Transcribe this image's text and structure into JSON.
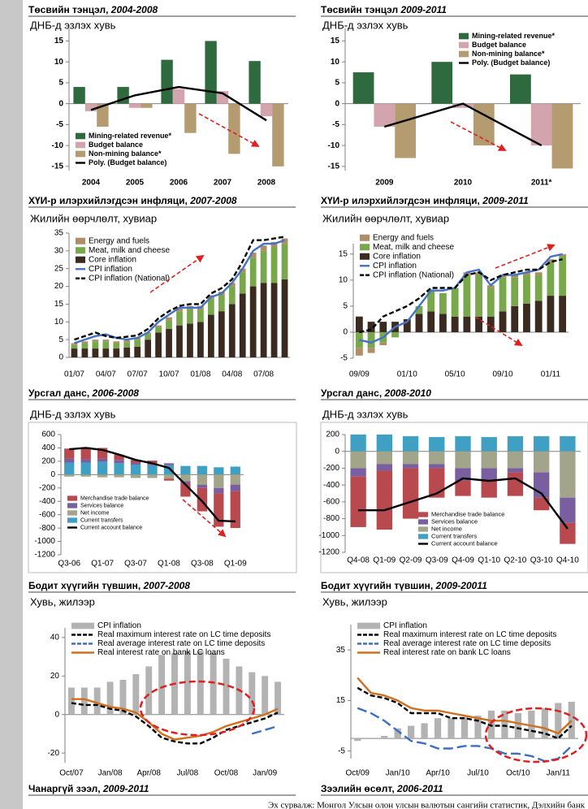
{
  "chart_data": [
    {
      "type": "bar",
      "stacked": false,
      "title": "Төсвийн тэнцэл, ",
      "title_period": "2004-2008",
      "subtitle": "ДНБ-д эзлэх хувь",
      "categories": [
        "2004",
        "2005",
        "2006",
        "2007",
        "2008"
      ],
      "series": [
        {
          "name": "Mining-related revenue*",
          "kind": "bar",
          "color": "#2f6a3f",
          "values": [
            4,
            4,
            10.5,
            15,
            10.2
          ]
        },
        {
          "name": "Budget balance",
          "kind": "bar",
          "color": "#d3a4ae",
          "values": [
            -1.8,
            -1,
            3.5,
            3,
            -3
          ]
        },
        {
          "name": "Non-mining balance*",
          "kind": "bar",
          "color": "#b59b70",
          "values": [
            -5.5,
            -1,
            -7,
            -12,
            -15
          ]
        },
        {
          "name": "Poly. (Budget balance)",
          "kind": "line",
          "color": "#000000",
          "values": [
            -1.5,
            2,
            4,
            2.5,
            -4
          ]
        }
      ],
      "ylim": [
        -16,
        18
      ],
      "yticks": [
        -15,
        -10,
        -5,
        0,
        5,
        10,
        15
      ],
      "legend": "lower left"
    },
    {
      "type": "bar",
      "stacked": false,
      "title": "Төсвийн тэнцэл ",
      "title_period": "2009-2011",
      "subtitle": "ДНБ-д эзлэх хувь",
      "categories": [
        "2009",
        "2010",
        "2011*"
      ],
      "series": [
        {
          "name": "Mining-related revenue*",
          "kind": "bar",
          "color": "#2f6a3f",
          "values": [
            7.5,
            10,
            7
          ]
        },
        {
          "name": "Budget balance",
          "kind": "bar",
          "color": "#d3a4ae",
          "values": [
            -5.5,
            -1,
            -10
          ]
        },
        {
          "name": "Non-mining balance*",
          "kind": "bar",
          "color": "#b59b70",
          "values": [
            -13,
            -10,
            -15.5
          ]
        },
        {
          "name": "Poly. (Budget balance)",
          "kind": "line",
          "color": "#000000",
          "values": [
            -5.5,
            0,
            -10
          ]
        }
      ],
      "ylim": [
        -16,
        18
      ],
      "yticks": [
        -15,
        -10,
        -5,
        0,
        5,
        10,
        15
      ],
      "legend": "upper right"
    },
    {
      "type": "bar",
      "stacked": true,
      "title": "ХҮИ-р илэрхийлэгдсэн инфляци, ",
      "title_period": "2007-2008",
      "subtitle": "Жилийн өөрчлөлт, хувиар",
      "categories": [
        "01/07",
        null,
        null,
        "04/07",
        null,
        null,
        "07/07",
        null,
        null,
        "10/07",
        null,
        null,
        "01/08",
        null,
        null,
        "04/08",
        null,
        null,
        "07/08",
        null,
        null
      ],
      "series": [
        {
          "name": "Energy and fuels",
          "kind": "bar",
          "color": "#b08d68",
          "values": [
            0.5,
            0.5,
            0.5,
            0.5,
            0.5,
            0.5,
            0.5,
            0.5,
            0.5,
            0.8,
            1,
            1,
            1,
            1,
            1,
            1,
            1,
            1.5,
            1.5,
            1.5,
            1.5
          ]
        },
        {
          "name": "Meat, milk and cheese",
          "kind": "bar",
          "color": "#78a84b",
          "values": [
            1,
            1.5,
            2,
            2,
            1.5,
            1.5,
            2,
            1.5,
            1.5,
            2.5,
            4,
            4,
            3.5,
            4.5,
            4.5,
            5,
            6,
            8,
            9,
            10,
            10
          ]
        },
        {
          "name": "Core inflation",
          "kind": "bar",
          "color": "#3a2a1f",
          "values": [
            2.5,
            2.5,
            2.5,
            2.5,
            2.5,
            2.8,
            3,
            5,
            7,
            8,
            9,
            9.5,
            10,
            12,
            13,
            15,
            18,
            20,
            21,
            21,
            22
          ]
        },
        {
          "name": "CPI inflation",
          "kind": "line",
          "color": "#4472c4",
          "values": [
            4,
            5,
            6,
            6.5,
            5.5,
            5,
            5.5,
            7,
            10,
            12,
            14,
            14,
            14,
            17,
            18,
            21,
            25,
            30,
            32,
            32,
            33
          ]
        },
        {
          "name": "CPI inflation (National)",
          "kind": "line",
          "dash": true,
          "color": "#000000",
          "values": [
            5,
            6,
            7,
            6,
            5.5,
            5.8,
            6.2,
            8,
            11,
            13,
            14.5,
            15,
            15,
            18,
            19.5,
            22,
            27,
            33,
            33,
            33.5,
            34
          ]
        }
      ],
      "ylim": [
        0,
        35
      ],
      "yticks": [
        0,
        5,
        10,
        15,
        20,
        25,
        30,
        35
      ],
      "legend": "upper left"
    },
    {
      "type": "bar",
      "stacked": true,
      "title": "ХҮИ-р илэрхийлэгдсэн инфляци, ",
      "title_period": "2009-2011",
      "subtitle": "Жилийн өөрчлөлт, хувиар",
      "categories": [
        "09/09",
        null,
        null,
        null,
        "01/10",
        null,
        null,
        null,
        "05/10",
        null,
        null,
        null,
        "09/10",
        null,
        null,
        null,
        "01/11",
        null
      ],
      "series": [
        {
          "name": "Energy and fuels",
          "kind": "bar",
          "color": "#b08d68",
          "values": [
            -1.5,
            -1,
            -0.5,
            0,
            0,
            0,
            0,
            0,
            0,
            0.5,
            0.5,
            0.5,
            0.5,
            0.5,
            0.5,
            0.5,
            0.5,
            0.5
          ]
        },
        {
          "name": "Meat, milk and cheese",
          "kind": "bar",
          "color": "#78a84b",
          "values": [
            -3,
            -3,
            -2,
            -1,
            0,
            1.5,
            4,
            4,
            5.5,
            8,
            8,
            5.5,
            6.5,
            5.5,
            5.5,
            5,
            6.5,
            7.5
          ]
        },
        {
          "name": "Core inflation",
          "kind": "bar",
          "color": "#3a2a1f",
          "values": [
            3,
            2,
            2,
            2,
            2.5,
            3.5,
            4,
            3.5,
            3,
            3,
            3,
            3,
            4,
            5,
            5.5,
            6,
            7,
            7
          ]
        },
        {
          "name": "CPI inflation",
          "kind": "line",
          "color": "#4472c4",
          "values": [
            -1.5,
            -2,
            -1,
            1,
            2,
            5,
            8,
            8,
            8.5,
            11.5,
            12,
            9,
            11,
            11,
            11.5,
            12,
            14.5,
            15
          ]
        },
        {
          "name": "CPI inflation (National)",
          "kind": "line",
          "dash": true,
          "color": "#000000",
          "values": [
            0,
            0.5,
            3,
            4,
            5,
            6.5,
            8.5,
            8.5,
            8.5,
            11,
            11.5,
            10,
            11,
            11.5,
            12,
            12,
            13.5,
            14
          ]
        }
      ],
      "ylim": [
        -5,
        17
      ],
      "yticks": [
        -5,
        0,
        5,
        10,
        15
      ],
      "legend": "upper left"
    },
    {
      "type": "bar",
      "stacked": true,
      "title": "Урсгал данс, ",
      "title_period": "2006-2008",
      "subtitle": "ДНБ-д эзлэх хувь",
      "categories": [
        "Q3-06",
        null,
        "Q1-07",
        null,
        "Q3-07",
        null,
        "Q1-08",
        null,
        "Q3-08",
        null,
        "Q1-09"
      ],
      "series": [
        {
          "name": "Merchandise trade balance",
          "kind": "bar",
          "color": "#b8494e",
          "values": [
            150,
            180,
            160,
            80,
            40,
            40,
            -30,
            -200,
            -350,
            -500,
            -550
          ]
        },
        {
          "name": "Services balance",
          "kind": "bar",
          "color": "#7a5fa0",
          "values": [
            60,
            50,
            50,
            50,
            30,
            30,
            30,
            -30,
            -50,
            -80,
            -100
          ]
        },
        {
          "name": "Net income",
          "kind": "bar",
          "color": "#a3a58b",
          "values": [
            -30,
            -30,
            -40,
            -40,
            -50,
            -50,
            -60,
            -100,
            -150,
            -200,
            -150
          ]
        },
        {
          "name": "Current transfers",
          "kind": "bar",
          "color": "#3fa0c3",
          "values": [
            180,
            180,
            190,
            170,
            150,
            140,
            140,
            130,
            130,
            110,
            120
          ]
        },
        {
          "name": "Current account balance",
          "kind": "line",
          "color": "#000000",
          "values": [
            380,
            400,
            370,
            300,
            220,
            170,
            100,
            -150,
            -400,
            -690,
            -700
          ]
        }
      ],
      "ylim": [
        -1200,
        600
      ],
      "yticks": [
        -1200,
        -1000,
        -800,
        -600,
        -400,
        -200,
        0,
        200,
        400,
        600
      ],
      "legend": "lower left"
    },
    {
      "type": "bar",
      "stacked": true,
      "title": "Урсгал данс, ",
      "title_period": "2008-2010",
      "subtitle": "ДНБ-д эзлэх хувь",
      "categories": [
        "Q4-08",
        "Q1-09",
        "Q2-09",
        "Q3-09",
        "Q4-09",
        "Q1-10",
        "Q2-10",
        "Q3-10",
        "Q4-10"
      ],
      "series": [
        {
          "name": "Merchandise trade balance",
          "kind": "bar",
          "color": "#b8494e",
          "values": [
            -600,
            -700,
            -600,
            -350,
            -180,
            -200,
            -280,
            -150,
            -250
          ]
        },
        {
          "name": "Services balance",
          "kind": "bar",
          "color": "#7a5fa0",
          "values": [
            -100,
            -80,
            -50,
            -50,
            -150,
            -150,
            -50,
            -300,
            -300
          ]
        },
        {
          "name": "Net income",
          "kind": "bar",
          "color": "#a3a58b",
          "values": [
            -200,
            -150,
            -150,
            -150,
            -200,
            -200,
            -200,
            -250,
            -550
          ]
        },
        {
          "name": "Current transfers",
          "kind": "bar",
          "color": "#3fa0c3",
          "values": [
            200,
            200,
            180,
            170,
            180,
            170,
            180,
            180,
            180
          ]
        },
        {
          "name": "Current account balance",
          "kind": "line",
          "color": "#000000",
          "values": [
            -700,
            -700,
            -600,
            -500,
            -320,
            -350,
            -320,
            -500,
            -920
          ]
        }
      ],
      "ylim": [
        -1200,
        200
      ],
      "yticks": [
        -1200,
        -1000,
        -800,
        -600,
        -400,
        -200,
        0,
        200
      ],
      "legend": "lower right"
    },
    {
      "type": "bar",
      "stacked": false,
      "title": "Бодит хүүгийн түвшин, ",
      "title_period": "2007-2008",
      "subtitle": "Хувь, жилээр",
      "categories": [
        "Oct/07",
        null,
        null,
        "Jan/08",
        null,
        null,
        "Apr/08",
        null,
        null,
        "Jul/08",
        null,
        null,
        "Oct/08",
        null,
        null,
        "Jan/09",
        null
      ],
      "series": [
        {
          "name": "CPI inflation",
          "kind": "bar",
          "color": "#b3b3b3",
          "values": [
            14,
            14,
            14,
            17,
            18,
            21,
            25,
            31,
            32,
            33,
            33,
            32,
            29,
            25,
            22,
            20,
            17
          ]
        },
        {
          "name": "Real maximum interest rate on LC time deposits",
          "kind": "line",
          "dash": true,
          "color": "#000000",
          "values": [
            6,
            5,
            5,
            3,
            2,
            -1,
            -6,
            -12,
            -14,
            -15,
            -15,
            -12,
            -8,
            -6,
            -4,
            -2,
            1
          ]
        },
        {
          "name": "Real average interest rate on LC time deposits",
          "kind": "line",
          "dash": true,
          "color": "#3d6fc0",
          "values": [
            null,
            null,
            null,
            null,
            null,
            null,
            null,
            null,
            null,
            null,
            null,
            null,
            null,
            null,
            -10,
            -8,
            -6
          ]
        },
        {
          "name": "Real interest rate on bank LC loans",
          "kind": "line",
          "color": "#d06f1f",
          "values": [
            8,
            8,
            6,
            4,
            3,
            1,
            -4,
            -10,
            -13,
            -12,
            -11,
            -9,
            -6,
            -4,
            -2,
            0,
            3
          ]
        }
      ],
      "ylim": [
        -25,
        45
      ],
      "yticks": [
        -20,
        0,
        20,
        40
      ],
      "legend": "upper left"
    },
    {
      "type": "bar",
      "stacked": false,
      "title": "Бодит хүүгийн түвшин, ",
      "title_period": "2009-20011",
      "subtitle": "Хувь, жилээр",
      "categories": [
        "Oct/09",
        null,
        null,
        "Jan/10",
        null,
        null,
        "Apr/10",
        null,
        null,
        "Jul/10",
        null,
        null,
        "Oct/10",
        null,
        null,
        "Jan/11",
        null
      ],
      "series": [
        {
          "name": "CPI inflation",
          "kind": "bar",
          "color": "#b3b3b3",
          "values": [
            -1,
            0,
            1,
            4,
            5,
            6,
            8,
            8,
            8.5,
            9,
            11,
            11,
            10,
            11,
            12,
            14,
            14.5
          ]
        },
        {
          "name": "Real maximum interest rate on LC time deposits",
          "kind": "line",
          "dash": true,
          "color": "#000000",
          "values": [
            20,
            17,
            16,
            14,
            10,
            10,
            10,
            8,
            8,
            7,
            5,
            5,
            4,
            3,
            2,
            0,
            5
          ]
        },
        {
          "name": "Real average interest rate on LC time deposits",
          "kind": "line",
          "dash": true,
          "color": "#3d6fc0",
          "values": [
            12,
            10,
            7,
            3,
            -1,
            -2,
            -4,
            -4,
            -3,
            -3,
            -4,
            -6,
            -6,
            -7,
            -9,
            -8,
            -3
          ]
        },
        {
          "name": "Real interest rate on bank LC loans",
          "kind": "line",
          "color": "#d06f1f",
          "values": [
            24,
            18,
            17,
            15,
            12,
            11,
            11,
            10,
            9,
            8,
            7,
            7,
            6,
            5,
            4,
            2,
            7
          ]
        }
      ],
      "ylim": [
        -8,
        45
      ],
      "yticks": [
        -5,
        15,
        35
      ],
      "legend": "upper left"
    }
  ],
  "next_sections": [
    {
      "title": "Чанаргүй зээл, ",
      "title_period": "2009-2011"
    },
    {
      "title": "Зээлийн өсөлт, ",
      "title_period": "2006-2011"
    }
  ],
  "footnote": "Эх сурвалж: Монгол Улсын олон улсын валютын сангийн статистик, Дэлхийн банк"
}
